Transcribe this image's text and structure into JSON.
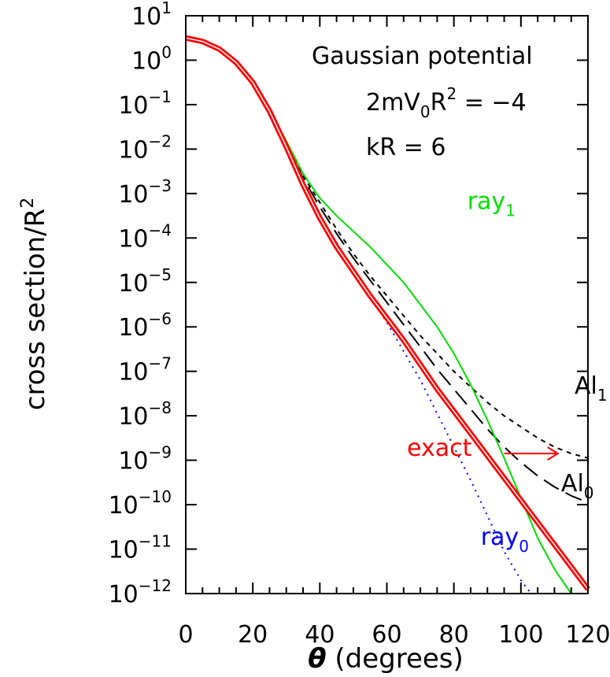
{
  "chart_data": {
    "type": "line",
    "xlabel_symbol": "θ",
    "xlabel_text": "(degrees)",
    "ylabel": "cross section/R",
    "ylabel_sup": "2",
    "xlim": [
      0,
      120
    ],
    "ylim_log10": [
      -12,
      1
    ],
    "y_scale": "log",
    "xticks": [
      0,
      20,
      40,
      60,
      80,
      100,
      120
    ],
    "ytick_exponents": [
      1,
      0,
      -1,
      -2,
      -3,
      -4,
      -5,
      -6,
      -7,
      -8,
      -9,
      -10,
      -11,
      -12
    ],
    "ytick_base": "10",
    "annotations": {
      "line1": "Gaussian potential",
      "line2_a": "2mV",
      "line2_sub": "0",
      "line2_b": "R",
      "line2_sup": "2",
      "line2_c": " = −4",
      "line3": "kR = 6"
    },
    "series": [
      {
        "name": "ray",
        "sub": "1",
        "color": "#00e000",
        "dash": "solid",
        "x": [
          0,
          5,
          10,
          15,
          20,
          25,
          30,
          35,
          40,
          45,
          50,
          55,
          60,
          65,
          70,
          75,
          80,
          85,
          90,
          95,
          100,
          105,
          110,
          115
        ],
        "log10_y": [
          0.5,
          0.42,
          0.25,
          -0.05,
          -0.5,
          -1.12,
          -1.82,
          -2.55,
          -3.1,
          -3.5,
          -3.85,
          -4.2,
          -4.6,
          -5.0,
          -5.5,
          -6.0,
          -6.6,
          -7.3,
          -8.1,
          -8.95,
          -9.85,
          -10.75,
          -11.45,
          -12.0
        ]
      },
      {
        "name": "Al",
        "sub": "1",
        "color": "#000000",
        "dash": "short",
        "x": [
          0,
          5,
          10,
          15,
          20,
          25,
          30,
          35,
          40,
          45,
          50,
          55,
          60,
          65,
          70,
          75,
          80,
          85,
          90,
          95,
          100,
          105,
          110,
          115,
          120
        ],
        "log10_y": [
          0.5,
          0.42,
          0.25,
          -0.05,
          -0.5,
          -1.15,
          -1.9,
          -2.6,
          -3.2,
          -3.8,
          -4.35,
          -4.85,
          -5.3,
          -5.75,
          -6.2,
          -6.6,
          -7.0,
          -7.35,
          -7.7,
          -8.0,
          -8.25,
          -8.5,
          -8.7,
          -8.85,
          -8.95
        ]
      },
      {
        "name": "Al",
        "sub": "0",
        "color": "#000000",
        "dash": "long",
        "x": [
          0,
          5,
          10,
          15,
          20,
          25,
          30,
          35,
          40,
          45,
          50,
          55,
          60,
          65,
          70,
          75,
          80,
          85,
          90,
          95,
          100,
          105,
          110,
          115,
          120
        ],
        "log10_y": [
          0.5,
          0.42,
          0.25,
          -0.05,
          -0.5,
          -1.15,
          -1.9,
          -2.65,
          -3.3,
          -3.9,
          -4.45,
          -4.95,
          -5.45,
          -5.95,
          -6.45,
          -6.95,
          -7.4,
          -7.85,
          -8.3,
          -8.7,
          -9.05,
          -9.35,
          -9.6,
          -9.8,
          -9.95
        ]
      },
      {
        "name": "exact",
        "sub": "",
        "color": "#ff0000",
        "dash": "solid",
        "x": [
          0,
          5,
          10,
          15,
          20,
          25,
          30,
          35,
          40,
          45,
          50,
          55,
          60,
          65,
          70,
          75,
          80,
          85,
          90,
          95,
          100,
          105,
          110,
          115,
          120
        ],
        "log10_y": [
          0.5,
          0.42,
          0.25,
          -0.05,
          -0.5,
          -1.15,
          -1.95,
          -2.8,
          -3.55,
          -4.2,
          -4.75,
          -5.3,
          -5.8,
          -6.3,
          -6.85,
          -7.4,
          -7.9,
          -8.4,
          -8.9,
          -9.4,
          -9.9,
          -10.4,
          -10.9,
          -11.4,
          -11.9
        ]
      },
      {
        "name": "ray",
        "sub": "0",
        "color": "#0000ff",
        "dash": "dotted",
        "x": [
          0,
          5,
          10,
          15,
          20,
          25,
          30,
          35,
          40,
          45,
          50,
          55,
          60,
          65,
          70,
          75,
          80,
          85,
          90,
          95,
          100,
          103
        ],
        "log10_y": [
          0.5,
          0.42,
          0.25,
          -0.05,
          -0.5,
          -1.15,
          -1.95,
          -2.8,
          -3.5,
          -4.1,
          -4.7,
          -5.3,
          -5.9,
          -6.55,
          -7.2,
          -7.95,
          -8.7,
          -9.45,
          -10.25,
          -11.05,
          -11.7,
          -12.0
        ]
      }
    ],
    "series_labels": [
      {
        "series": 0,
        "x": 84,
        "log10_y": -3.35,
        "anchor": "start"
      },
      {
        "series": 1,
        "x": 116,
        "log10_y": -7.5,
        "anchor": "start"
      },
      {
        "series": 2,
        "x": 112,
        "log10_y": -9.7,
        "anchor": "start"
      },
      {
        "series": 3,
        "x": 66,
        "log10_y": -8.9,
        "anchor": "start"
      },
      {
        "series": 4,
        "x": 88,
        "log10_y": -10.9,
        "anchor": "start"
      }
    ],
    "arrow": {
      "from_x": 95,
      "to_x": 111,
      "log10_y": -8.85,
      "color": "#ff0000"
    }
  }
}
